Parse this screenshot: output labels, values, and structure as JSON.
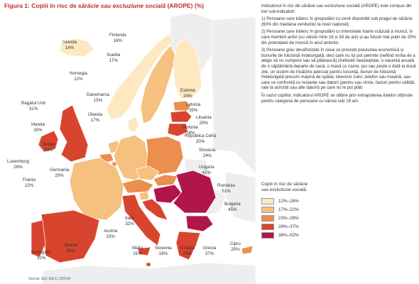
{
  "title": {
    "prefix": "Figura 1: Copiii în risc de ",
    "italic": "sărăcie sau excluziune socială",
    "suffix": " (AROPE) (%)"
  },
  "info": {
    "intro_a": "Indicatorul în ",
    "intro_italic": "risc de sărăcie sau excluziune socială",
    "intro_b": " (AROPE) este compus din trei sub-indicatori:",
    "p1": "1) Persoane care trăiesc în gospodării cu venit disponibil sub pragul de sărăcie (60% din mediana veniturilor la nivel național).",
    "p2": "2) Persoane care trăiesc în gospodării cu intensitate foarte scăzută a muncii, în care membrii activi (cu vârste între 18 și 59 de ani) și-au folosit mai puțin de 20% din potențialul de muncă în anul anterior.",
    "p3": "3) Persoane grav devaforizate în ceea ce privește presiunea economică și bunurile de folosință îndelungată, deci care nu își pot permite (nefiind vorba de a alege să nu cumpere sau să plătească) cheltuieli neașteptate, o vacanță anuală de o săptămână departe de casă, o masă cu carne, pui sau pește o dată la două zile, un sistem de încălzire adecvat pentru locuință, bunuri de folosință îndelungată precum mașină de spălat, televizor color, telefon sau mașină, sau care se confruntă cu restanțe sau datorii (pentru sau chirie, facturi pentru utilități, rate la achiziții sau alte datorii) pe care nu le pot plăti.",
    "p4": "În cazul copiilor, indicatorul AROPE se obține prin extrapolarea datelor obținute pentru categoria de persoane cu vârsta sub 18 ani."
  },
  "legend": {
    "title_line1": "Copiii în risc de sărăcie",
    "title_line2": "sau excluziune socială",
    "classes": [
      {
        "label": "12%–16%",
        "color": "#fde8c2"
      },
      {
        "label": "17%–22%",
        "color": "#f6c07f"
      },
      {
        "label": "23%–28%",
        "color": "#ec8e4e"
      },
      {
        "label": "29%–37%",
        "color": "#d9442e"
      },
      {
        "label": "38%–52%",
        "color": "#b0164a"
      }
    ]
  },
  "source": "Sursa: EU-SILC (2014)",
  "colors": {
    "other_land": "#eeeeee",
    "sea": "#ffffff",
    "border": "#ffffff",
    "title": "#c62828"
  },
  "countries": [
    {
      "name": "Islanda",
      "value": "14%",
      "class": 0
    },
    {
      "name": "Finlanda",
      "value": "16%",
      "class": 0
    },
    {
      "name": "Suedia",
      "value": "17%",
      "class": 1
    },
    {
      "name": "Norvegia",
      "value": "12%",
      "class": 0
    },
    {
      "name": "Estonia",
      "value": "24%",
      "class": 2
    },
    {
      "name": "Letonia",
      "value": "35%",
      "class": 3
    },
    {
      "name": "Lituania",
      "value": "29%",
      "class": 3
    },
    {
      "name": "Danemarca",
      "value": "15%",
      "class": 0
    },
    {
      "name": "Regatul Unit",
      "value": "31%",
      "class": 3
    },
    {
      "name": "Irlanda",
      "value": "30%",
      "class": 3
    },
    {
      "name": "Olanda",
      "value": "17%",
      "class": 1
    },
    {
      "name": "Polonia",
      "value": "28%",
      "class": 2
    },
    {
      "name": "Belgia",
      "value": "23%",
      "class": 2
    },
    {
      "name": "Republica Cehă",
      "value": "20%",
      "class": 1
    },
    {
      "name": "Luxemburg",
      "value": "26%",
      "class": 2
    },
    {
      "name": "Germania",
      "value": "20%",
      "class": 1
    },
    {
      "name": "Slovacia",
      "value": "24%",
      "class": 2
    },
    {
      "name": "Franța",
      "value": "22%",
      "class": 1
    },
    {
      "name": "Ungaria",
      "value": "41%",
      "class": 4
    },
    {
      "name": "România",
      "value": "51%",
      "class": 4
    },
    {
      "name": "Bulgaria",
      "value": "45%",
      "class": 4
    },
    {
      "name": "Italia",
      "value": "32%",
      "class": 3
    },
    {
      "name": "Austria",
      "value": "23%",
      "class": 2
    },
    {
      "name": "Spania",
      "value": "36%",
      "class": 3
    },
    {
      "name": "Portugalia",
      "value": "31%",
      "class": 3
    },
    {
      "name": "Malta",
      "value": "31%",
      "class": 3
    },
    {
      "name": "Slovenia",
      "value": "18%",
      "class": 1
    },
    {
      "name": "Croația",
      "value": "29%",
      "class": 3
    },
    {
      "name": "Grecia",
      "value": "37%",
      "class": 3
    },
    {
      "name": "Cipru",
      "value": "25%",
      "class": 2
    }
  ]
}
